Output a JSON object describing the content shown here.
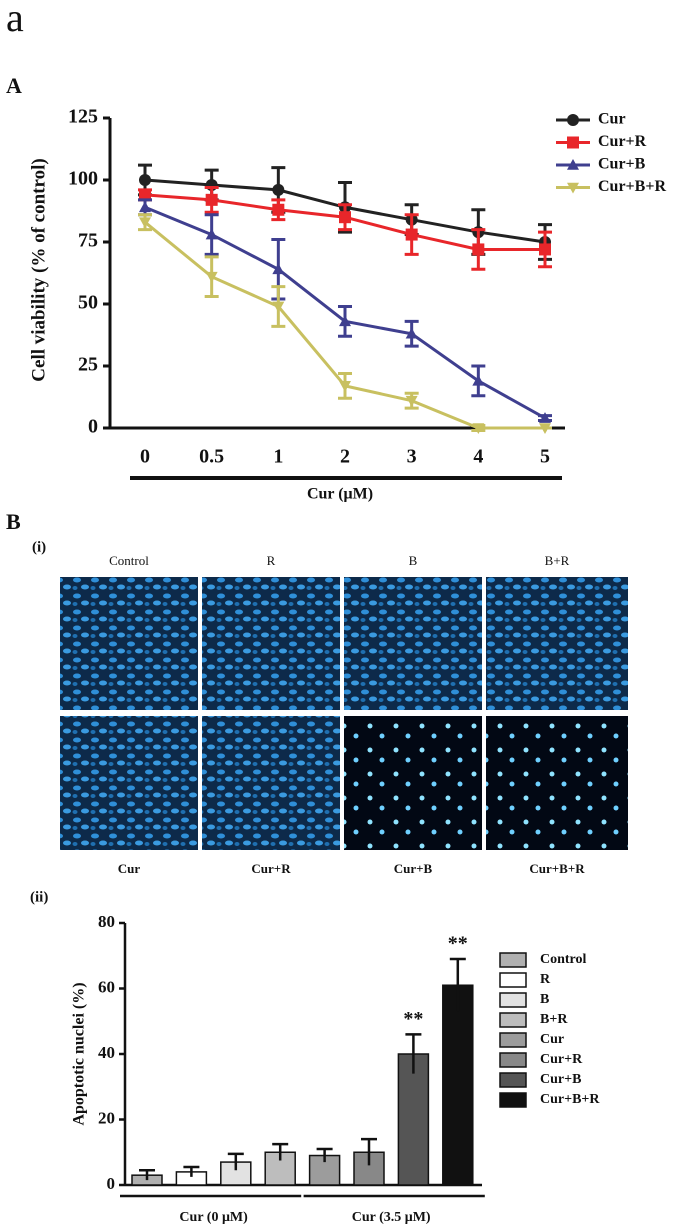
{
  "figure_label": "a",
  "panels": {
    "A": "A",
    "B": "B",
    "i": "(i)",
    "ii": "(ii)"
  },
  "images": {
    "top_labels": [
      "Control",
      "R",
      "B",
      "B+R"
    ],
    "bottom_labels": [
      "Cur",
      "Cur+R",
      "Cur+B",
      "Cur+B+R"
    ]
  },
  "chart_data": [
    {
      "type": "line",
      "x_label": "Cur (μM)",
      "y_label": "Cell viability (% of control)",
      "categories": [
        "0",
        "0.5",
        "1",
        "2",
        "3",
        "4",
        "5"
      ],
      "ylim": [
        0,
        125
      ],
      "yticks": [
        0,
        25,
        50,
        75,
        100,
        125
      ],
      "legend": "right",
      "series": [
        {
          "name": "Cur",
          "color": "#222222",
          "marker": "circle",
          "values": [
            100,
            98,
            96,
            89,
            84,
            79,
            75
          ],
          "errors": [
            6,
            6,
            9,
            10,
            6,
            9,
            7
          ]
        },
        {
          "name": "Cur+R",
          "color": "#e8262a",
          "marker": "square",
          "values": [
            94,
            92,
            88,
            85,
            78,
            72,
            72
          ],
          "errors": [
            2,
            5,
            4,
            5,
            8,
            8,
            7
          ]
        },
        {
          "name": "Cur+B",
          "color": "#3f3f8f",
          "marker": "triangle-up",
          "values": [
            89,
            78,
            64,
            43,
            38,
            19,
            4
          ],
          "errors": [
            3,
            8,
            12,
            6,
            5,
            6,
            1
          ]
        },
        {
          "name": "Cur+B+R",
          "color": "#c8c060",
          "marker": "triangle-down",
          "values": [
            83,
            61,
            49,
            17,
            11,
            0,
            0
          ],
          "errors": [
            3,
            8,
            8,
            5,
            3,
            1,
            0
          ]
        }
      ]
    },
    {
      "type": "bar",
      "y_label": "Apoptotic nuclei (%)",
      "categories": [
        "Control",
        "R",
        "B",
        "B+R",
        "Cur",
        "Cur+R",
        "Cur+B",
        "Cur+B+R"
      ],
      "values": [
        3,
        4,
        7,
        10,
        9,
        10,
        40,
        61
      ],
      "errors": [
        1.5,
        1.5,
        2.5,
        2.5,
        2,
        4,
        6,
        8
      ],
      "colors": [
        "#b0b0b0",
        "#ffffff",
        "#e2e2e2",
        "#bdbdbd",
        "#9c9c9c",
        "#888888",
        "#555555",
        "#111111"
      ],
      "annotations": [
        null,
        null,
        null,
        null,
        null,
        null,
        "**",
        "**"
      ],
      "ylim": [
        0,
        80
      ],
      "yticks": [
        0,
        20,
        40,
        60,
        80
      ],
      "legend": "right",
      "groups": [
        {
          "label": "Cur (0 μM)",
          "members": [
            "Control",
            "R",
            "B",
            "B+R"
          ]
        },
        {
          "label": "Cur (3.5 μM)",
          "members": [
            "Cur",
            "Cur+R",
            "Cur+B",
            "Cur+B+R"
          ]
        }
      ]
    }
  ]
}
